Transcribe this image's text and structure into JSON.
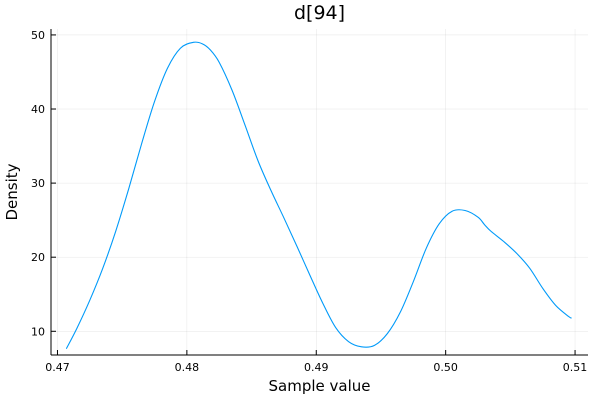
{
  "chart_data": {
    "type": "line",
    "title": "d[94]",
    "xlabel": "Sample value",
    "ylabel": "Density",
    "xlim": [
      0.4695,
      0.511
    ],
    "ylim": [
      6.8,
      50.8
    ],
    "xticks": [
      0.47,
      0.48,
      0.49,
      0.5,
      0.51
    ],
    "xtick_labels": [
      "0.47",
      "0.48",
      "0.49",
      "0.50",
      "0.51"
    ],
    "yticks": [
      10,
      20,
      30,
      40,
      50
    ],
    "ytick_labels": [
      "10",
      "20",
      "30",
      "40",
      "50"
    ],
    "grid": true,
    "legend": "none",
    "color": "#009af9",
    "series": [
      {
        "x": [
          0.4707,
          0.4715,
          0.4725,
          0.4735,
          0.4745,
          0.4755,
          0.4765,
          0.4775,
          0.4785,
          0.4795,
          0.4805,
          0.4812,
          0.4818,
          0.4825,
          0.4835,
          0.4845,
          0.4855,
          0.4865,
          0.4875,
          0.4885,
          0.4895,
          0.4905,
          0.4915,
          0.4925,
          0.4935,
          0.4945,
          0.4955,
          0.4965,
          0.4975,
          0.4985,
          0.4995,
          0.5005,
          0.5015,
          0.5025,
          0.503,
          0.5035,
          0.5045,
          0.5055,
          0.5065,
          0.5075,
          0.5085,
          0.5095,
          0.5097
        ],
        "y": [
          7.7,
          10.4,
          14.2,
          18.5,
          23.5,
          29.2,
          35.3,
          41.0,
          45.5,
          48.2,
          49.0,
          48.8,
          48.0,
          46.3,
          42.5,
          37.8,
          33.0,
          29.0,
          25.3,
          21.5,
          17.6,
          13.8,
          10.5,
          8.6,
          7.9,
          8.1,
          9.7,
          12.6,
          16.7,
          21.2,
          24.5,
          26.2,
          26.3,
          25.4,
          24.4,
          23.5,
          22.1,
          20.5,
          18.5,
          15.8,
          13.5,
          12.0,
          11.8
        ]
      }
    ]
  }
}
